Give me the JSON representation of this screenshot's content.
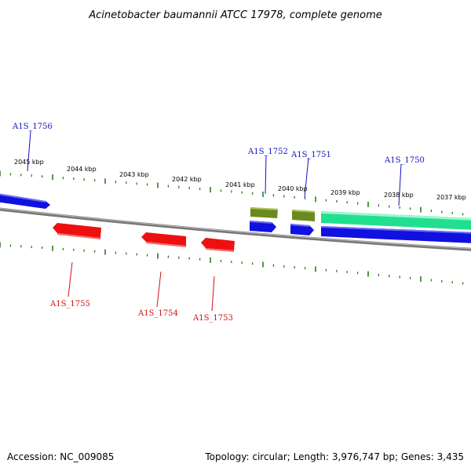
{
  "title": "Acinetobacter baumannii ATCC 17978, complete genome",
  "footer": {
    "accession": "Accession: NC_009085",
    "summary": "Topology: circular; Length: 3,976,747 bp; Genes: 3,435"
  },
  "colors": {
    "backbone": "#888888",
    "tick": "#2e7d1a",
    "forward_cds": "#1010e0",
    "reverse_cds": "#ee1010",
    "other_gene": "#6b8a1e",
    "rna_feature": "#20e090",
    "forward_label": "#1010c0",
    "reverse_label": "#d01010"
  },
  "tick_labels": [
    {
      "id": "2045",
      "text": "2045 kbp"
    },
    {
      "id": "2044",
      "text": "2044 kbp"
    },
    {
      "id": "2043",
      "text": "2043 kbp"
    },
    {
      "id": "2042",
      "text": "2042 kbp"
    },
    {
      "id": "2041",
      "text": "2041 kbp"
    },
    {
      "id": "2040",
      "text": "2040 kbp"
    },
    {
      "id": "2039",
      "text": "2039 kbp"
    },
    {
      "id": "2038",
      "text": "2038 kbp"
    },
    {
      "id": "2037",
      "text": "2037 kbp"
    }
  ],
  "genes": [
    {
      "id": "A1S_1756",
      "label": "A1S_1756",
      "strand": "forward",
      "color": "#1010e0"
    },
    {
      "id": "A1S_1755",
      "label": "A1S_1755",
      "strand": "reverse",
      "color": "#ee1010"
    },
    {
      "id": "A1S_1754",
      "label": "A1S_1754",
      "strand": "reverse",
      "color": "#ee1010"
    },
    {
      "id": "A1S_1753",
      "label": "A1S_1753",
      "strand": "reverse",
      "color": "#ee1010"
    },
    {
      "id": "A1S_1752",
      "label": "A1S_1752",
      "strand": "forward",
      "color": "#1010e0"
    },
    {
      "id": "A1S_1751",
      "label": "A1S_1751",
      "strand": "forward",
      "color": "#1010e0"
    },
    {
      "id": "A1S_1750",
      "label": "A1S_1750",
      "strand": "forward",
      "color": "#1010e0"
    }
  ]
}
